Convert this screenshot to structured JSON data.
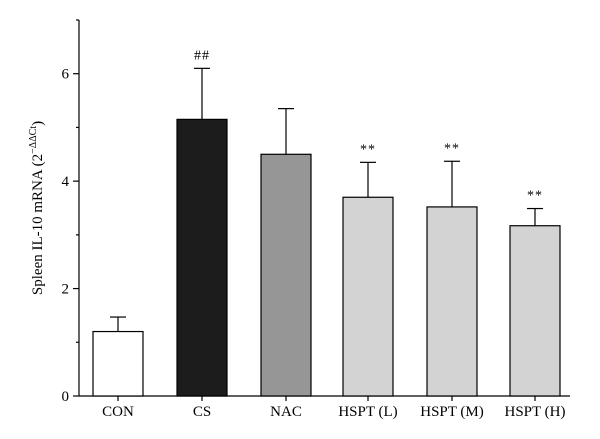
{
  "chart_data": {
    "type": "bar",
    "title": "",
    "xlabel": "",
    "ylabel": "Spleen IL-10 mRNA (2",
    "ylabel_superscript": "−ΔΔCt",
    "ylabel_close": ")",
    "ylim": [
      0,
      7
    ],
    "yticks": [
      0,
      2,
      4,
      6
    ],
    "categories": [
      "CON",
      "CS",
      "NAC",
      "HSPT (L)",
      "HSPT (M)",
      "HSPT (H)"
    ],
    "values": [
      1.2,
      5.15,
      4.5,
      3.7,
      3.52,
      3.17
    ],
    "errors": [
      0.27,
      0.95,
      0.85,
      0.65,
      0.85,
      0.32
    ],
    "annotations": [
      "",
      "##",
      "",
      "**",
      "**",
      "**"
    ],
    "colors": [
      "#ffffff",
      "#1c1c1c",
      "#969696",
      "#d3d3d3",
      "#d3d3d3",
      "#d3d3d3"
    ],
    "grid": false,
    "legend": "none"
  }
}
